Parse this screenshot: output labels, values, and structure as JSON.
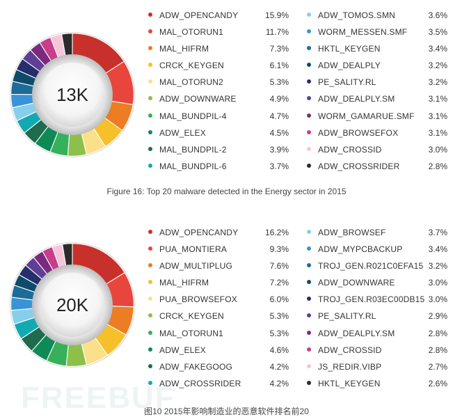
{
  "watermark": "FREEBUF",
  "chart_data": [
    {
      "type": "pie",
      "center_label": "13K",
      "caption": "Figure 16: Top 20 malware detected in the Energy sector in 2015",
      "labels": [
        "ADW_OPENCANDY",
        "MAL_OTORUN1",
        "MAL_HIFRM",
        "CRCK_KEYGEN",
        "MAL_OTORUN2",
        "ADW_DOWNWARE",
        "MAL_BUNDPIL-4",
        "ADW_ELEX",
        "MAL_BUNDPIL-2",
        "MAL_BUNDPIL-6",
        "ADW_TOMOS.SMN",
        "WORM_MESSEN.SMF",
        "HKTL_KEYGEN",
        "ADW_DEALPLY",
        "PE_SALITY.RL",
        "ADW_DEALPLY.SM",
        "WORM_GAMARUE.SMF",
        "ADW_BROWSEFOX",
        "ADW_CROSSID",
        "ADW_CROSSRIDER"
      ],
      "values": [
        15.9,
        11.7,
        7.3,
        6.1,
        5.3,
        4.9,
        4.7,
        4.5,
        3.9,
        3.7,
        3.6,
        3.5,
        3.4,
        3.2,
        3.2,
        3.1,
        3.1,
        3.1,
        3.0,
        2.8
      ],
      "value_labels": [
        "15.9%",
        "11.7%",
        "7.3%",
        "6.1%",
        "5.3%",
        "4.9%",
        "4.7%",
        "4.5%",
        "3.9%",
        "3.7%",
        "3.6%",
        "3.5%",
        "3.4%",
        "3.2%",
        "3.2%",
        "3.1%",
        "3.1%",
        "3.1%",
        "3.0%",
        "2.8%"
      ],
      "colors": [
        "#c8312b",
        "#e8463c",
        "#ec7d22",
        "#f5c02a",
        "#fbe08a",
        "#8cc04a",
        "#36b05a",
        "#0f8a56",
        "#1f6b4e",
        "#12aab0",
        "#86cfeb",
        "#3a93d6",
        "#1d6b98",
        "#0e4b6a",
        "#25306a",
        "#5f3f95",
        "#7b2a7e",
        "#c83e8a",
        "#f6c6d8",
        "#2b2b2b"
      ],
      "legend_placement": "right"
    },
    {
      "type": "pie",
      "center_label": "20K",
      "caption": "图10 2015年影响制造业的恶意软件排名前20",
      "labels": [
        "ADW_OPENCANDY",
        "PUA_MONTIERA",
        "ADW_MULTIPLUG",
        "MAL_HIFRM",
        "PUA_BROWSEFOX",
        "CRCK_KEYGEN",
        "MAL_OTORUN1",
        "ADW_ELEX",
        "ADW_FAKEGOOG",
        "ADW_CROSSRIDER",
        "ADW_BROWSEF",
        "ADW_MYPCBACKUP",
        "TROJ_GEN.R021C0EFA15",
        "ADW_DOWNWARE",
        "TROJ_GEN.R03EC00DB15",
        "PE_SALITY.RL",
        "ADW_DEALPLY.SM",
        "ADW_CROSSID",
        "JS_REDIR.VIBP",
        "HKTL_KEYGEN"
      ],
      "values": [
        16.2,
        9.3,
        7.6,
        7.2,
        6.0,
        5.3,
        5.3,
        4.6,
        4.2,
        4.2,
        3.7,
        3.4,
        3.2,
        3.0,
        3.0,
        2.9,
        2.8,
        2.8,
        2.7,
        2.6
      ],
      "value_labels": [
        "16.2%",
        "9.3%",
        "7.6%",
        "7.2%",
        "6.0%",
        "5.3%",
        "5.3%",
        "4.6%",
        "4.2%",
        "4.2%",
        "3.7%",
        "3.4%",
        "3.2%",
        "3.0%",
        "3.0%",
        "2.9%",
        "2.8%",
        "2.8%",
        "2.7%",
        "2.6%"
      ],
      "colors": [
        "#c8312b",
        "#e8463c",
        "#ec7d22",
        "#f5c02a",
        "#fbe08a",
        "#8cc04a",
        "#36b05a",
        "#0f8a56",
        "#1f6b4e",
        "#12aab0",
        "#86cfeb",
        "#3a93d6",
        "#1d6b98",
        "#0e4b6a",
        "#25306a",
        "#5f3f95",
        "#7b2a7e",
        "#c83e8a",
        "#f6c6d8",
        "#2b2b2b"
      ],
      "legend_placement": "right"
    }
  ]
}
